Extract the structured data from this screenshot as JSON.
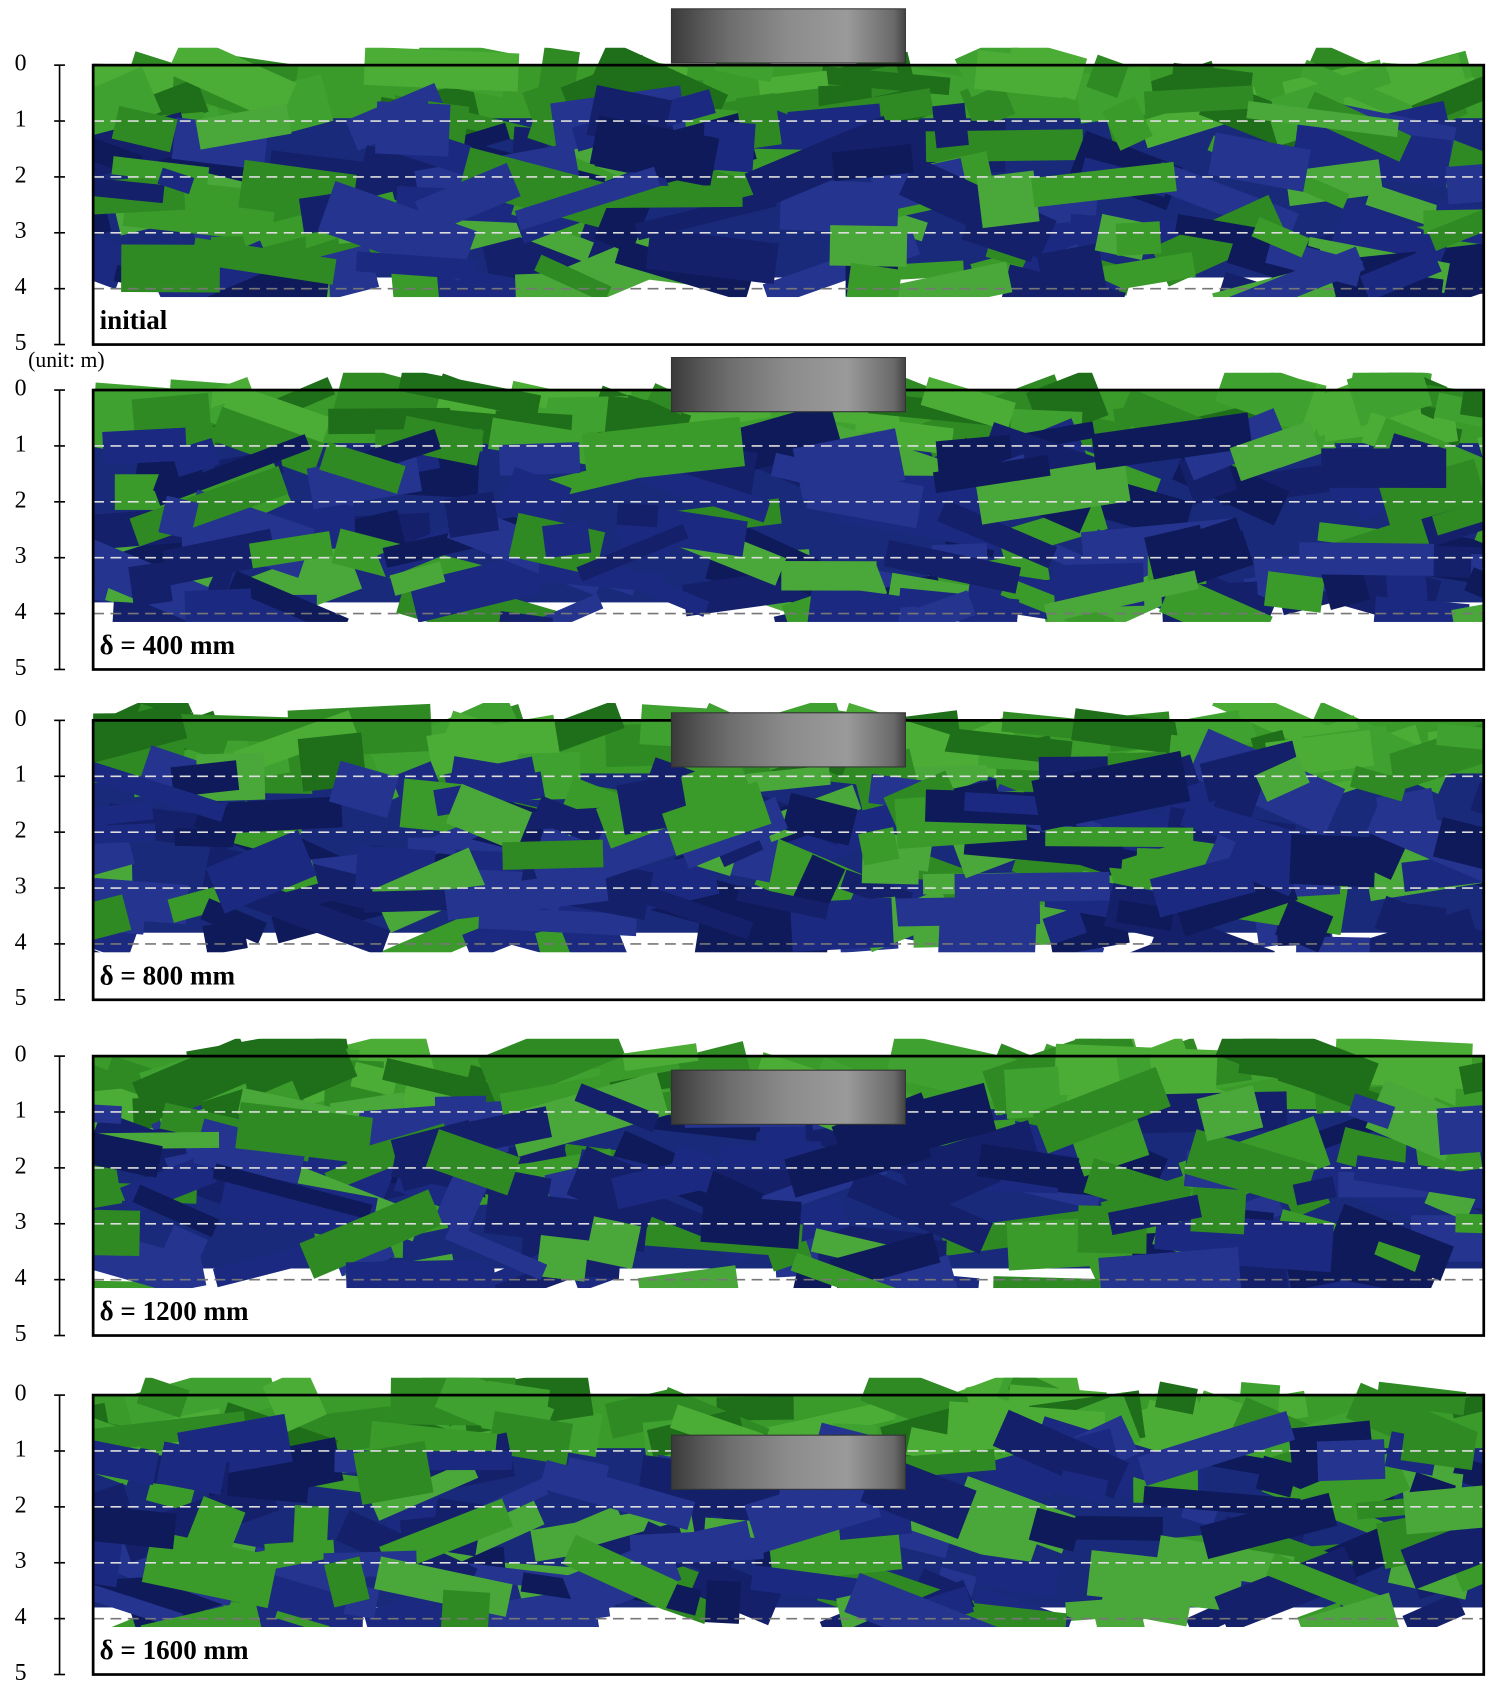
{
  "panels": [
    {
      "label": "initial"
    },
    {
      "label": "δ = 400 mm"
    },
    {
      "label": "δ = 800 mm"
    },
    {
      "label": "δ = 1200 mm"
    },
    {
      "label": "δ = 1600 mm"
    }
  ],
  "depth_axis": {
    "ticks": [
      0,
      1,
      2,
      3,
      4,
      5
    ],
    "unit_label": "(unit: m)"
  }
}
